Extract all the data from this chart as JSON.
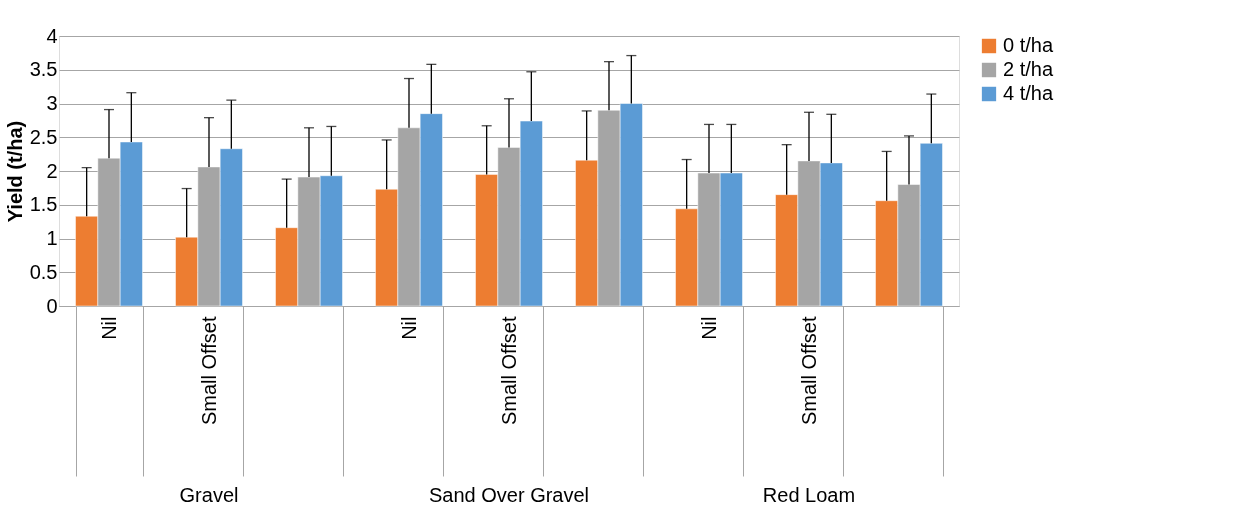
{
  "chart_data": {
    "type": "bar",
    "ylabel": "Yield (t/ha)",
    "categories": [
      "Nil",
      "Small Offset",
      null,
      "Nil",
      "Small Offset",
      null,
      "Nil",
      "Small Offset",
      null
    ],
    "annotations": [
      "Gravel",
      "Sand Over Gravel",
      "Red Loam"
    ],
    "series": [
      {
        "name": "0 t/ha",
        "color": "#ed7d31",
        "values": [
          1.33,
          1.02,
          1.16,
          1.73,
          1.95,
          2.16,
          1.44,
          1.65,
          1.56
        ],
        "errors": [
          [
            1.33,
            2.05
          ],
          [
            1.02,
            1.74
          ],
          [
            1.16,
            1.88
          ],
          [
            1.73,
            2.46
          ],
          [
            1.95,
            2.67
          ],
          [
            2.16,
            2.89
          ],
          [
            1.44,
            2.17
          ],
          [
            1.65,
            2.39
          ],
          [
            1.56,
            2.29
          ]
        ]
      },
      {
        "name": "2 t/ha",
        "color": "#a5a5a5",
        "values": [
          2.19,
          2.06,
          1.91,
          2.64,
          2.35,
          2.9,
          1.97,
          2.15,
          1.8
        ],
        "errors": [
          [
            2.19,
            2.91
          ],
          [
            2.06,
            2.79
          ],
          [
            1.91,
            2.64
          ],
          [
            2.64,
            3.37
          ],
          [
            2.35,
            3.07
          ],
          [
            2.9,
            3.62
          ],
          [
            1.97,
            2.69
          ],
          [
            2.15,
            2.87
          ],
          [
            1.8,
            2.52
          ]
        ]
      },
      {
        "name": "4 t/ha",
        "color": "#5b9bd5",
        "values": [
          2.43,
          2.33,
          1.93,
          2.85,
          2.74,
          3.0,
          1.97,
          2.12,
          2.41
        ],
        "errors": [
          [
            2.43,
            3.16
          ],
          [
            2.33,
            3.05
          ],
          [
            1.93,
            2.66
          ],
          [
            2.85,
            3.58
          ],
          [
            2.74,
            3.47
          ],
          [
            3.0,
            3.71
          ],
          [
            1.97,
            2.69
          ],
          [
            2.12,
            2.84
          ],
          [
            2.41,
            3.14
          ]
        ]
      }
    ],
    "ylim": [
      0,
      4
    ],
    "yticks": [
      0,
      0.5,
      1,
      1.5,
      2,
      2.5,
      3,
      3.5,
      4
    ],
    "grid": "y",
    "legend": "right"
  }
}
